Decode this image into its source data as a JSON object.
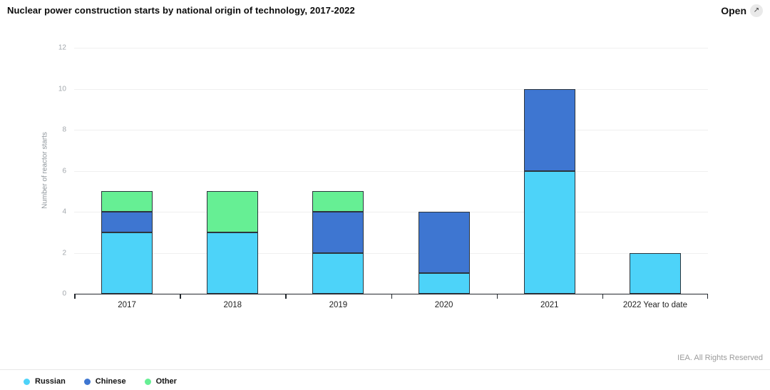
{
  "chart_data": {
    "type": "bar",
    "stacked": true,
    "title": "Nuclear power construction starts by national origin of technology, 2017-2022",
    "xlabel": "",
    "ylabel": "Number of reactor starts",
    "categories": [
      "2017",
      "2018",
      "2019",
      "2020",
      "2021",
      "2022 Year to date"
    ],
    "series": [
      {
        "name": "Russian",
        "color": "#4DD3F9",
        "values": [
          3,
          3,
          2,
          1,
          6,
          2
        ]
      },
      {
        "name": "Chinese",
        "color": "#3E76D1",
        "values": [
          1,
          0,
          2,
          3,
          4,
          0
        ]
      },
      {
        "name": "Other",
        "color": "#66EF94",
        "values": [
          1,
          2,
          1,
          0,
          0,
          0
        ]
      }
    ],
    "ylim": [
      0,
      12
    ],
    "yticks": [
      0,
      2,
      4,
      6,
      8,
      10,
      12
    ],
    "grid": true,
    "legend_position": "bottom-left",
    "bar_border_color": "#2c353d",
    "axis_color": "#24292e",
    "gridline_color": "#efefef"
  },
  "header": {
    "open_label": "Open",
    "open_icon": "↗"
  },
  "footer": {
    "attribution": "IEA. All Rights Reserved"
  }
}
